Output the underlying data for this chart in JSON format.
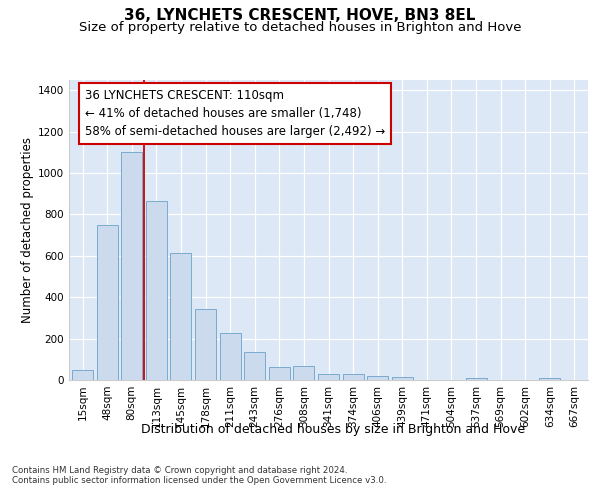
{
  "title": "36, LYNCHETS CRESCENT, HOVE, BN3 8EL",
  "subtitle": "Size of property relative to detached houses in Brighton and Hove",
  "xlabel": "Distribution of detached houses by size in Brighton and Hove",
  "ylabel": "Number of detached properties",
  "footnote1": "Contains HM Land Registry data © Crown copyright and database right 2024.",
  "footnote2": "Contains public sector information licensed under the Open Government Licence v3.0.",
  "annotation_line1": "36 LYNCHETS CRESCENT: 110sqm",
  "annotation_line2": "← 41% of detached houses are smaller (1,748)",
  "annotation_line3": "58% of semi-detached houses are larger (2,492) →",
  "bar_color": "#ccdaed",
  "bar_edge_color": "#7aaad0",
  "vline_color": "#cc0000",
  "vline_x": 2.5,
  "categories": [
    "15sqm",
    "48sqm",
    "80sqm",
    "113sqm",
    "145sqm",
    "178sqm",
    "211sqm",
    "243sqm",
    "276sqm",
    "308sqm",
    "341sqm",
    "374sqm",
    "406sqm",
    "439sqm",
    "471sqm",
    "504sqm",
    "537sqm",
    "569sqm",
    "602sqm",
    "634sqm",
    "667sqm"
  ],
  "values": [
    50,
    750,
    1100,
    865,
    615,
    345,
    225,
    135,
    65,
    70,
    30,
    30,
    20,
    15,
    0,
    0,
    10,
    0,
    0,
    10,
    0
  ],
  "ylim": [
    0,
    1450
  ],
  "yticks": [
    0,
    200,
    400,
    600,
    800,
    1000,
    1200,
    1400
  ],
  "bg_color": "#dce8f5",
  "title_fontsize": 11,
  "subtitle_fontsize": 9.5,
  "ylabel_fontsize": 8.5,
  "xlabel_fontsize": 9,
  "tick_fontsize": 7.5,
  "footnote_fontsize": 6.2,
  "ann_fontsize": 8.5
}
